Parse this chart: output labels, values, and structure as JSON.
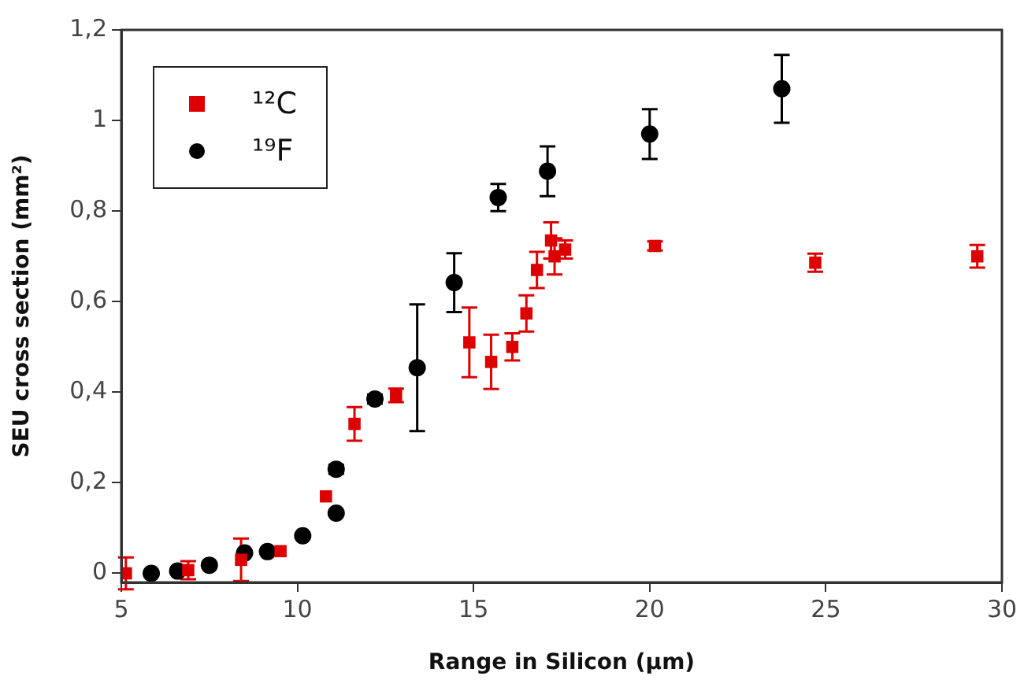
{
  "chart_data": {
    "type": "scatter",
    "xlabel": "Range in Silicon (µm)",
    "ylabel": "SEU cross section (mm²)",
    "xlim": [
      5,
      30
    ],
    "xticks": [
      5,
      10,
      15,
      20,
      25,
      30
    ],
    "ylim": [
      -0.02,
      1.2
    ],
    "yticks": [
      0,
      {
        "value": 0.2,
        "label": "0,2"
      },
      {
        "value": 0.4,
        "label": "0,4"
      },
      {
        "value": 0.6,
        "label": "0,6"
      },
      {
        "value": 0.8,
        "label": "0,8"
      },
      1,
      {
        "value": 1.2,
        "label": "1,2"
      }
    ],
    "legend": "top left",
    "grid": false,
    "series": [
      {
        "name": "¹²C",
        "color": "#dd0000",
        "marker": "square",
        "x": [
          5.13,
          6.9,
          8.4,
          9.52,
          10.81,
          11.62,
          12.8,
          14.88,
          15.5,
          16.1,
          16.5,
          16.8,
          17.2,
          17.3,
          17.6,
          20.15,
          24.7,
          29.3
        ],
        "values": [
          0,
          0.007,
          0.03,
          0.049,
          0.17,
          0.33,
          0.393,
          0.51,
          0.467,
          0.5,
          0.574,
          0.67,
          0.735,
          0.7,
          0.715,
          0.723,
          0.686,
          0.7
        ],
        "errors": [
          0.035,
          0.02,
          0.047,
          null,
          null,
          0.037,
          0.015,
          0.077,
          0.06,
          0.03,
          0.04,
          0.04,
          0.04,
          0.04,
          0.02,
          0.01,
          0.02,
          0.025
        ]
      },
      {
        "name": "¹⁹F",
        "color": "#000000",
        "marker": "circle",
        "x": [
          5.85,
          6.6,
          7.5,
          8.5,
          9.15,
          10.15,
          11.1,
          11.1,
          12.2,
          13.4,
          14.45,
          15.7,
          17.1,
          20.0,
          23.75
        ],
        "values": [
          0,
          0.005,
          0.018,
          0.045,
          0.048,
          0.083,
          0.133,
          0.23,
          0.385,
          0.454,
          0.642,
          0.83,
          0.888,
          0.97,
          1.07
        ],
        "errors": [
          null,
          null,
          null,
          null,
          null,
          null,
          null,
          0.01,
          0.01,
          0.14,
          0.065,
          0.03,
          0.055,
          0.055,
          0.075
        ]
      }
    ]
  }
}
